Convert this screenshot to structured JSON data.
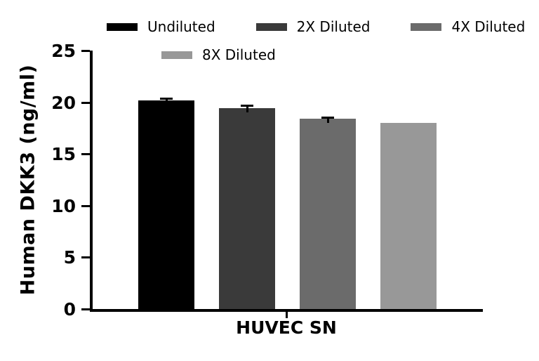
{
  "chart_data": {
    "type": "bar",
    "title": "",
    "ylabel": "Human DKK3 (ng/ml)",
    "xlabel": "",
    "categories": [
      "HUVEC SN"
    ],
    "series": [
      {
        "name": "Undiluted",
        "value": 20.2,
        "error": 0.15,
        "color": "#000000"
      },
      {
        "name": "2X Diluted",
        "value": 19.4,
        "error": 0.3,
        "color": "#3a3a3a"
      },
      {
        "name": "4X Diluted",
        "value": 18.4,
        "error": 0.12,
        "color": "#6b6b6b"
      },
      {
        "name": "8X Diluted",
        "value": 18.0,
        "error": 0.0,
        "color": "#989898"
      }
    ],
    "ylim": [
      0,
      25
    ],
    "yticks": [
      0,
      5,
      10,
      15,
      20,
      25
    ],
    "legend_position": "top",
    "grid": false
  },
  "colors": {
    "axis": "#000000",
    "background": "#ffffff"
  }
}
